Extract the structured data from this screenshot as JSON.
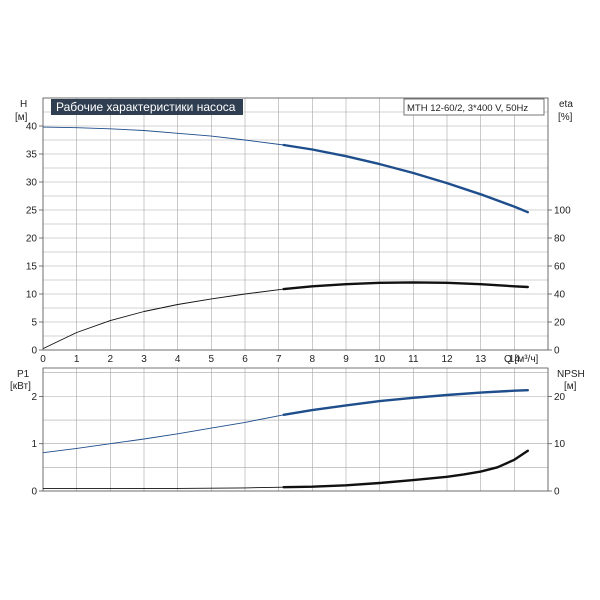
{
  "chart_data": [
    {
      "type": "line",
      "title": "Рабочие характеристики насоса",
      "annotation": "MTH 12-60/2, 3*400 V, 50Hz",
      "xlabel": "Q [м³/ч]",
      "xlim": [
        0,
        15
      ],
      "xticks": [
        0,
        1,
        2,
        3,
        4,
        5,
        6,
        7,
        8,
        9,
        10,
        11,
        12,
        13,
        14
      ],
      "y_left": {
        "label": "H",
        "unit": "[м]",
        "lim": [
          0,
          45
        ],
        "ticks": [
          0,
          5,
          10,
          15,
          20,
          25,
          30,
          35,
          40
        ]
      },
      "y_right": {
        "label": "eta",
        "unit": "[%]",
        "lim": [
          0,
          180
        ],
        "ticks": [
          0,
          20,
          40,
          60,
          80,
          100
        ]
      },
      "grid": true,
      "series": [
        {
          "axis": "left",
          "color": "#1f4e8c",
          "x": [
            0,
            1,
            2,
            3,
            4,
            5,
            6,
            7.15,
            8,
            9,
            10,
            11,
            12,
            13,
            14,
            14.4
          ],
          "y": [
            39.8,
            39.7,
            39.5,
            39.2,
            38.7,
            38.2,
            37.5,
            36.6,
            35.8,
            34.6,
            33.2,
            31.6,
            29.8,
            27.8,
            25.6,
            24.6
          ]
        },
        {
          "axis": "right",
          "color": "#111111",
          "x": [
            0,
            1,
            2,
            3,
            4,
            5,
            6,
            7.15,
            8,
            9,
            10,
            11,
            12,
            13,
            14,
            14.4
          ],
          "y": [
            1,
            12.5,
            21,
            27.5,
            32.5,
            36.5,
            40,
            43.5,
            45.5,
            47,
            48,
            48.3,
            48,
            47,
            45.5,
            45
          ]
        }
      ]
    },
    {
      "type": "line",
      "xlim": [
        0,
        15
      ],
      "y_left": {
        "label": "P1",
        "unit": "[кВт]",
        "lim": [
          0,
          2.6
        ],
        "ticks": [
          0,
          1,
          2
        ]
      },
      "y_right": {
        "label": "NPSH",
        "unit": "[м]",
        "lim": [
          0,
          26
        ],
        "ticks": [
          0,
          10,
          20
        ]
      },
      "grid": true,
      "series": [
        {
          "axis": "left",
          "color": "#1f4e8c",
          "x": [
            0,
            1,
            2,
            3,
            4,
            5,
            6,
            7.15,
            8,
            9,
            10,
            11,
            12,
            13,
            14,
            14.4
          ],
          "y": [
            0.81,
            0.9,
            1.0,
            1.1,
            1.21,
            1.33,
            1.45,
            1.61,
            1.71,
            1.81,
            1.9,
            1.97,
            2.03,
            2.08,
            2.12,
            2.13
          ]
        },
        {
          "axis": "right",
          "color": "#111111",
          "x": [
            0,
            2,
            4,
            6,
            7.15,
            8,
            9,
            10,
            11,
            12,
            12.5,
            13,
            13.5,
            14,
            14.4
          ],
          "y": [
            0.5,
            0.5,
            0.55,
            0.65,
            0.8,
            0.9,
            1.2,
            1.7,
            2.3,
            3.0,
            3.5,
            4.1,
            5.0,
            6.6,
            8.5
          ]
        }
      ]
    }
  ]
}
